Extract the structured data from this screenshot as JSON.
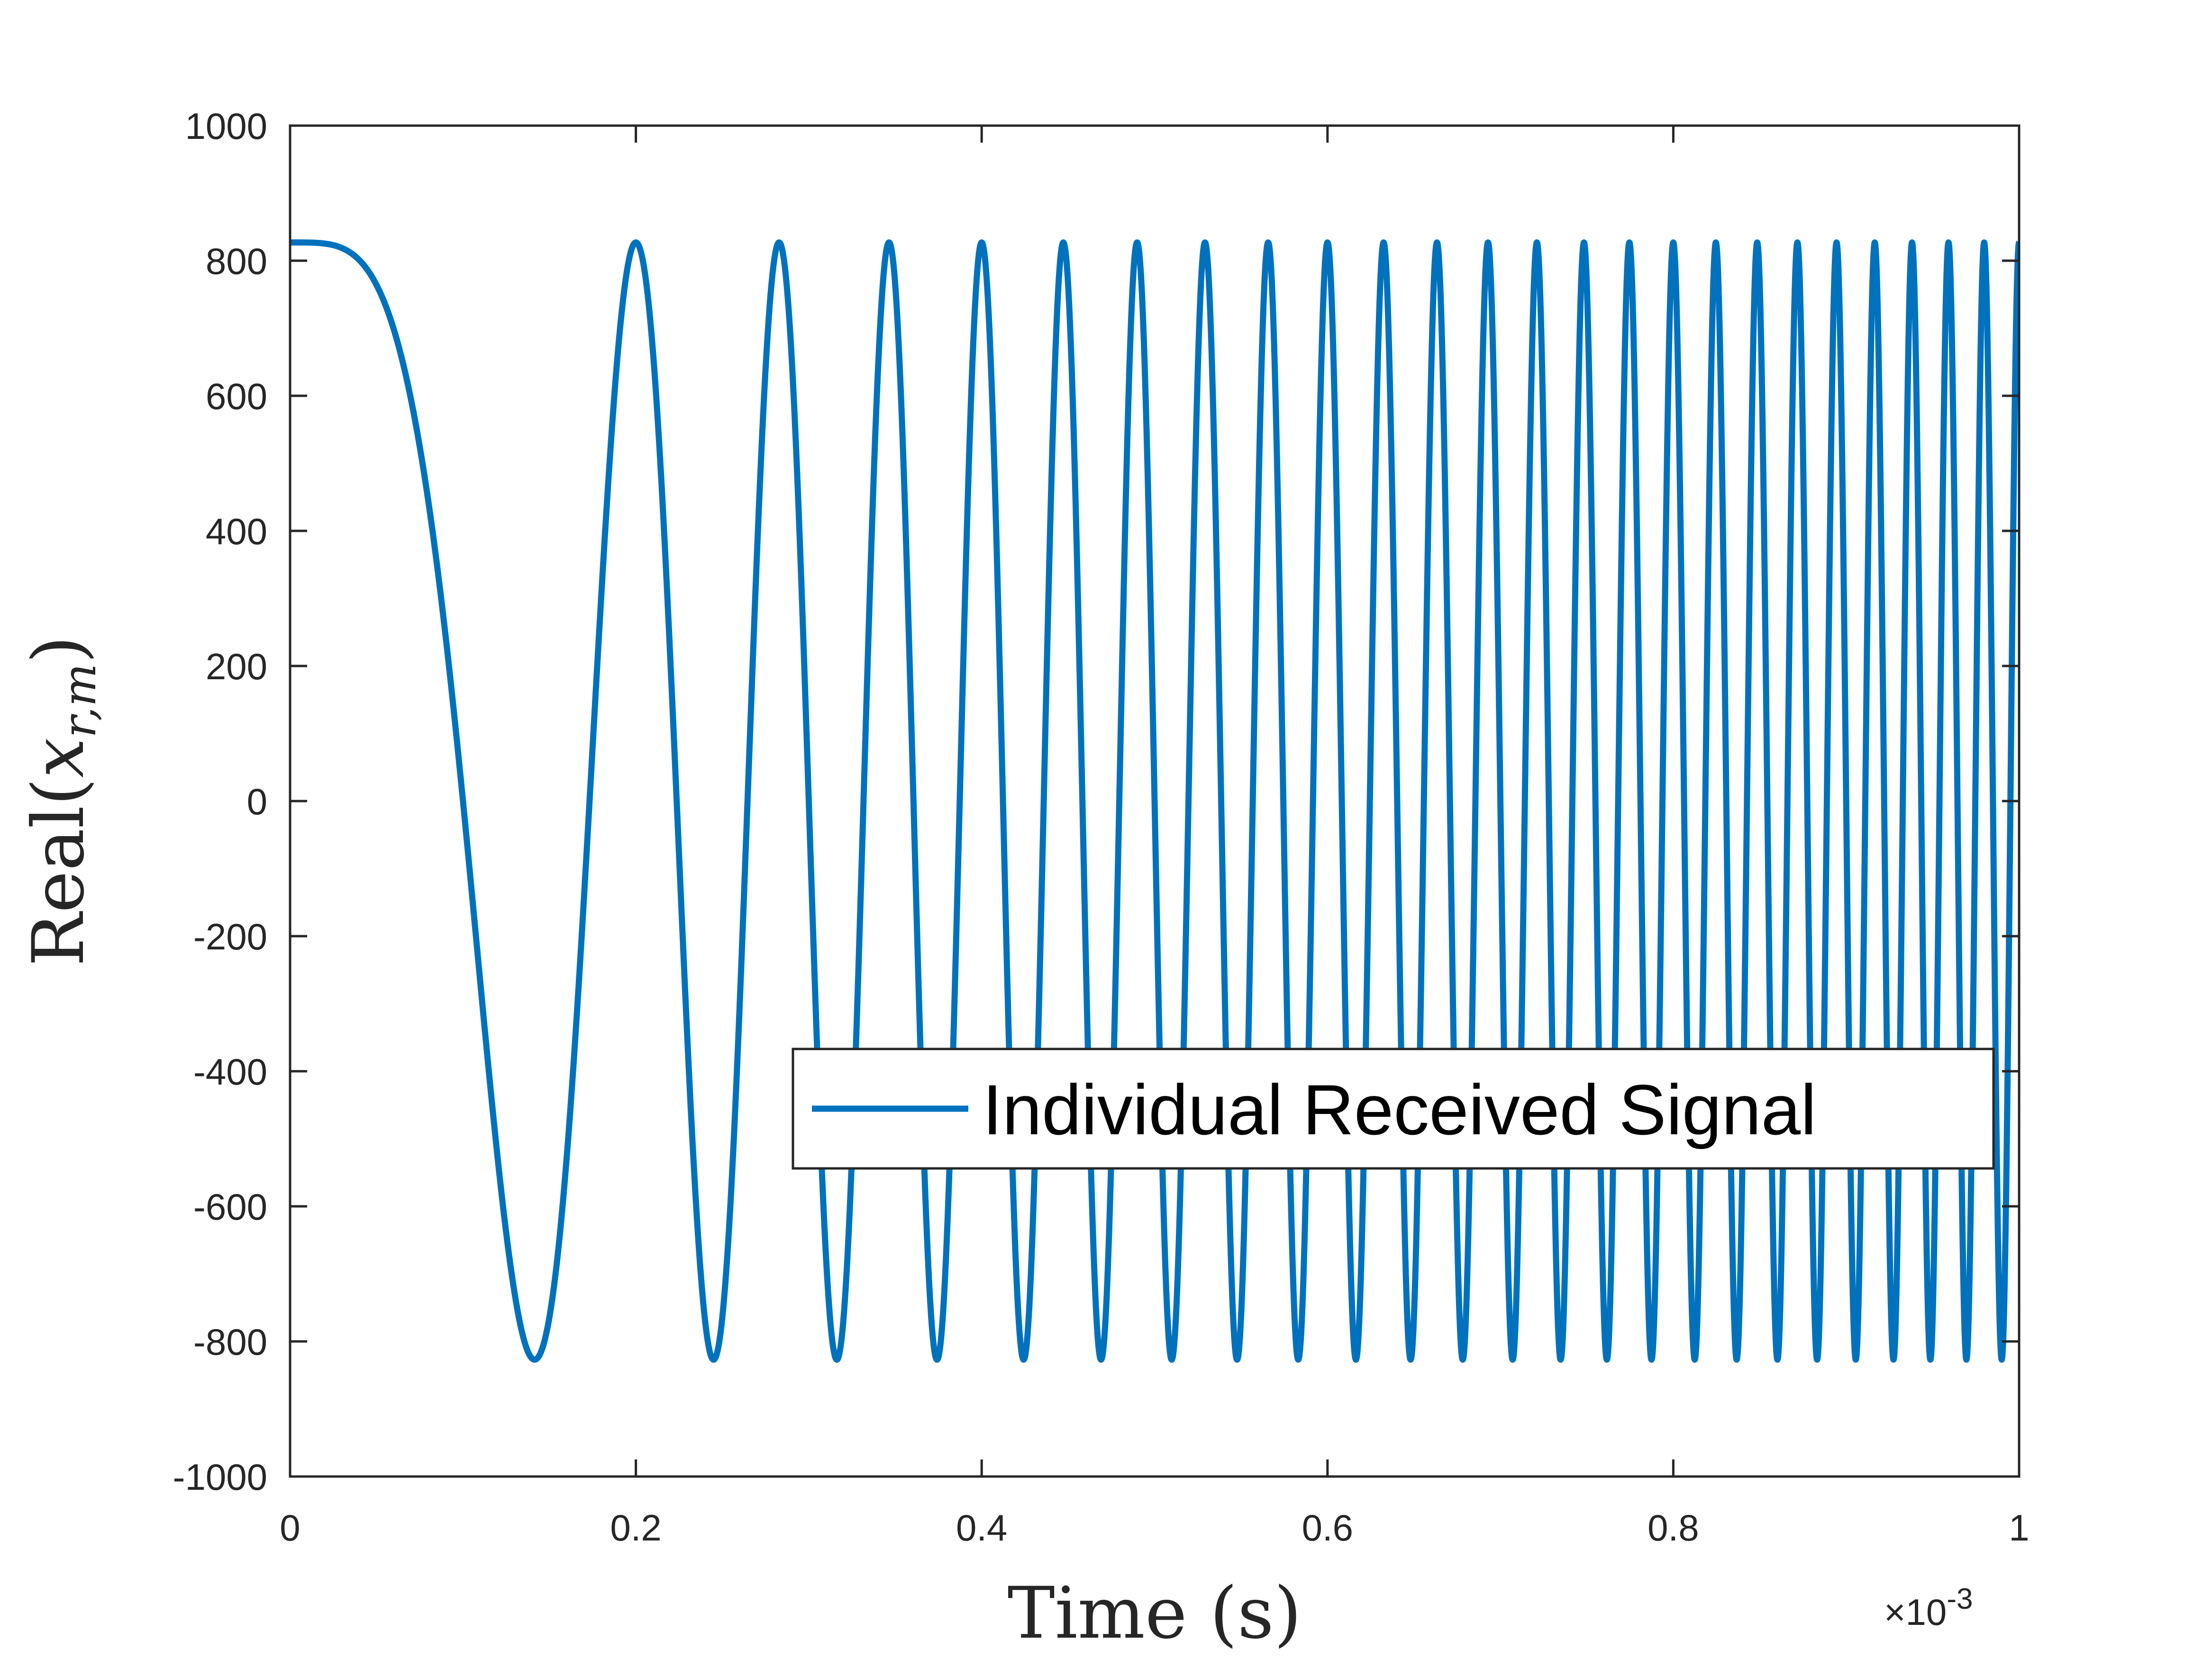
{
  "colors": {
    "series": "#0072bd",
    "axis": "#262626",
    "background": "#ffffff"
  },
  "chart_data": {
    "type": "line",
    "title": "",
    "xlabel": "Time (s)",
    "ylabel": "Real(x_{r,m})",
    "ylabel_parts": {
      "prefix": "Real(",
      "symbol": "x",
      "subscript": "r,m",
      "suffix": ")"
    },
    "xlim": [
      0,
      1
    ],
    "ylim": [
      -1000,
      1000
    ],
    "x_exponent_label": {
      "times": "×10",
      "exponent": "-3"
    },
    "x_ticks": [
      "0",
      "0.2",
      "0.4",
      "0.6",
      "0.8",
      "1"
    ],
    "y_ticks": [
      "1000",
      "800",
      "600",
      "400",
      "200",
      "0",
      "-200",
      "-400",
      "-600",
      "-800",
      "-1000"
    ],
    "grid": false,
    "box": true,
    "legend": {
      "location": "bottom-right",
      "entries": [
        "Individual Received Signal"
      ]
    },
    "series": [
      {
        "name": "Individual Received Signal",
        "function": "chirp",
        "amplitude": 827,
        "phase_coefficient": 50,
        "x_domain": [
          0,
          1
        ]
      }
    ]
  }
}
